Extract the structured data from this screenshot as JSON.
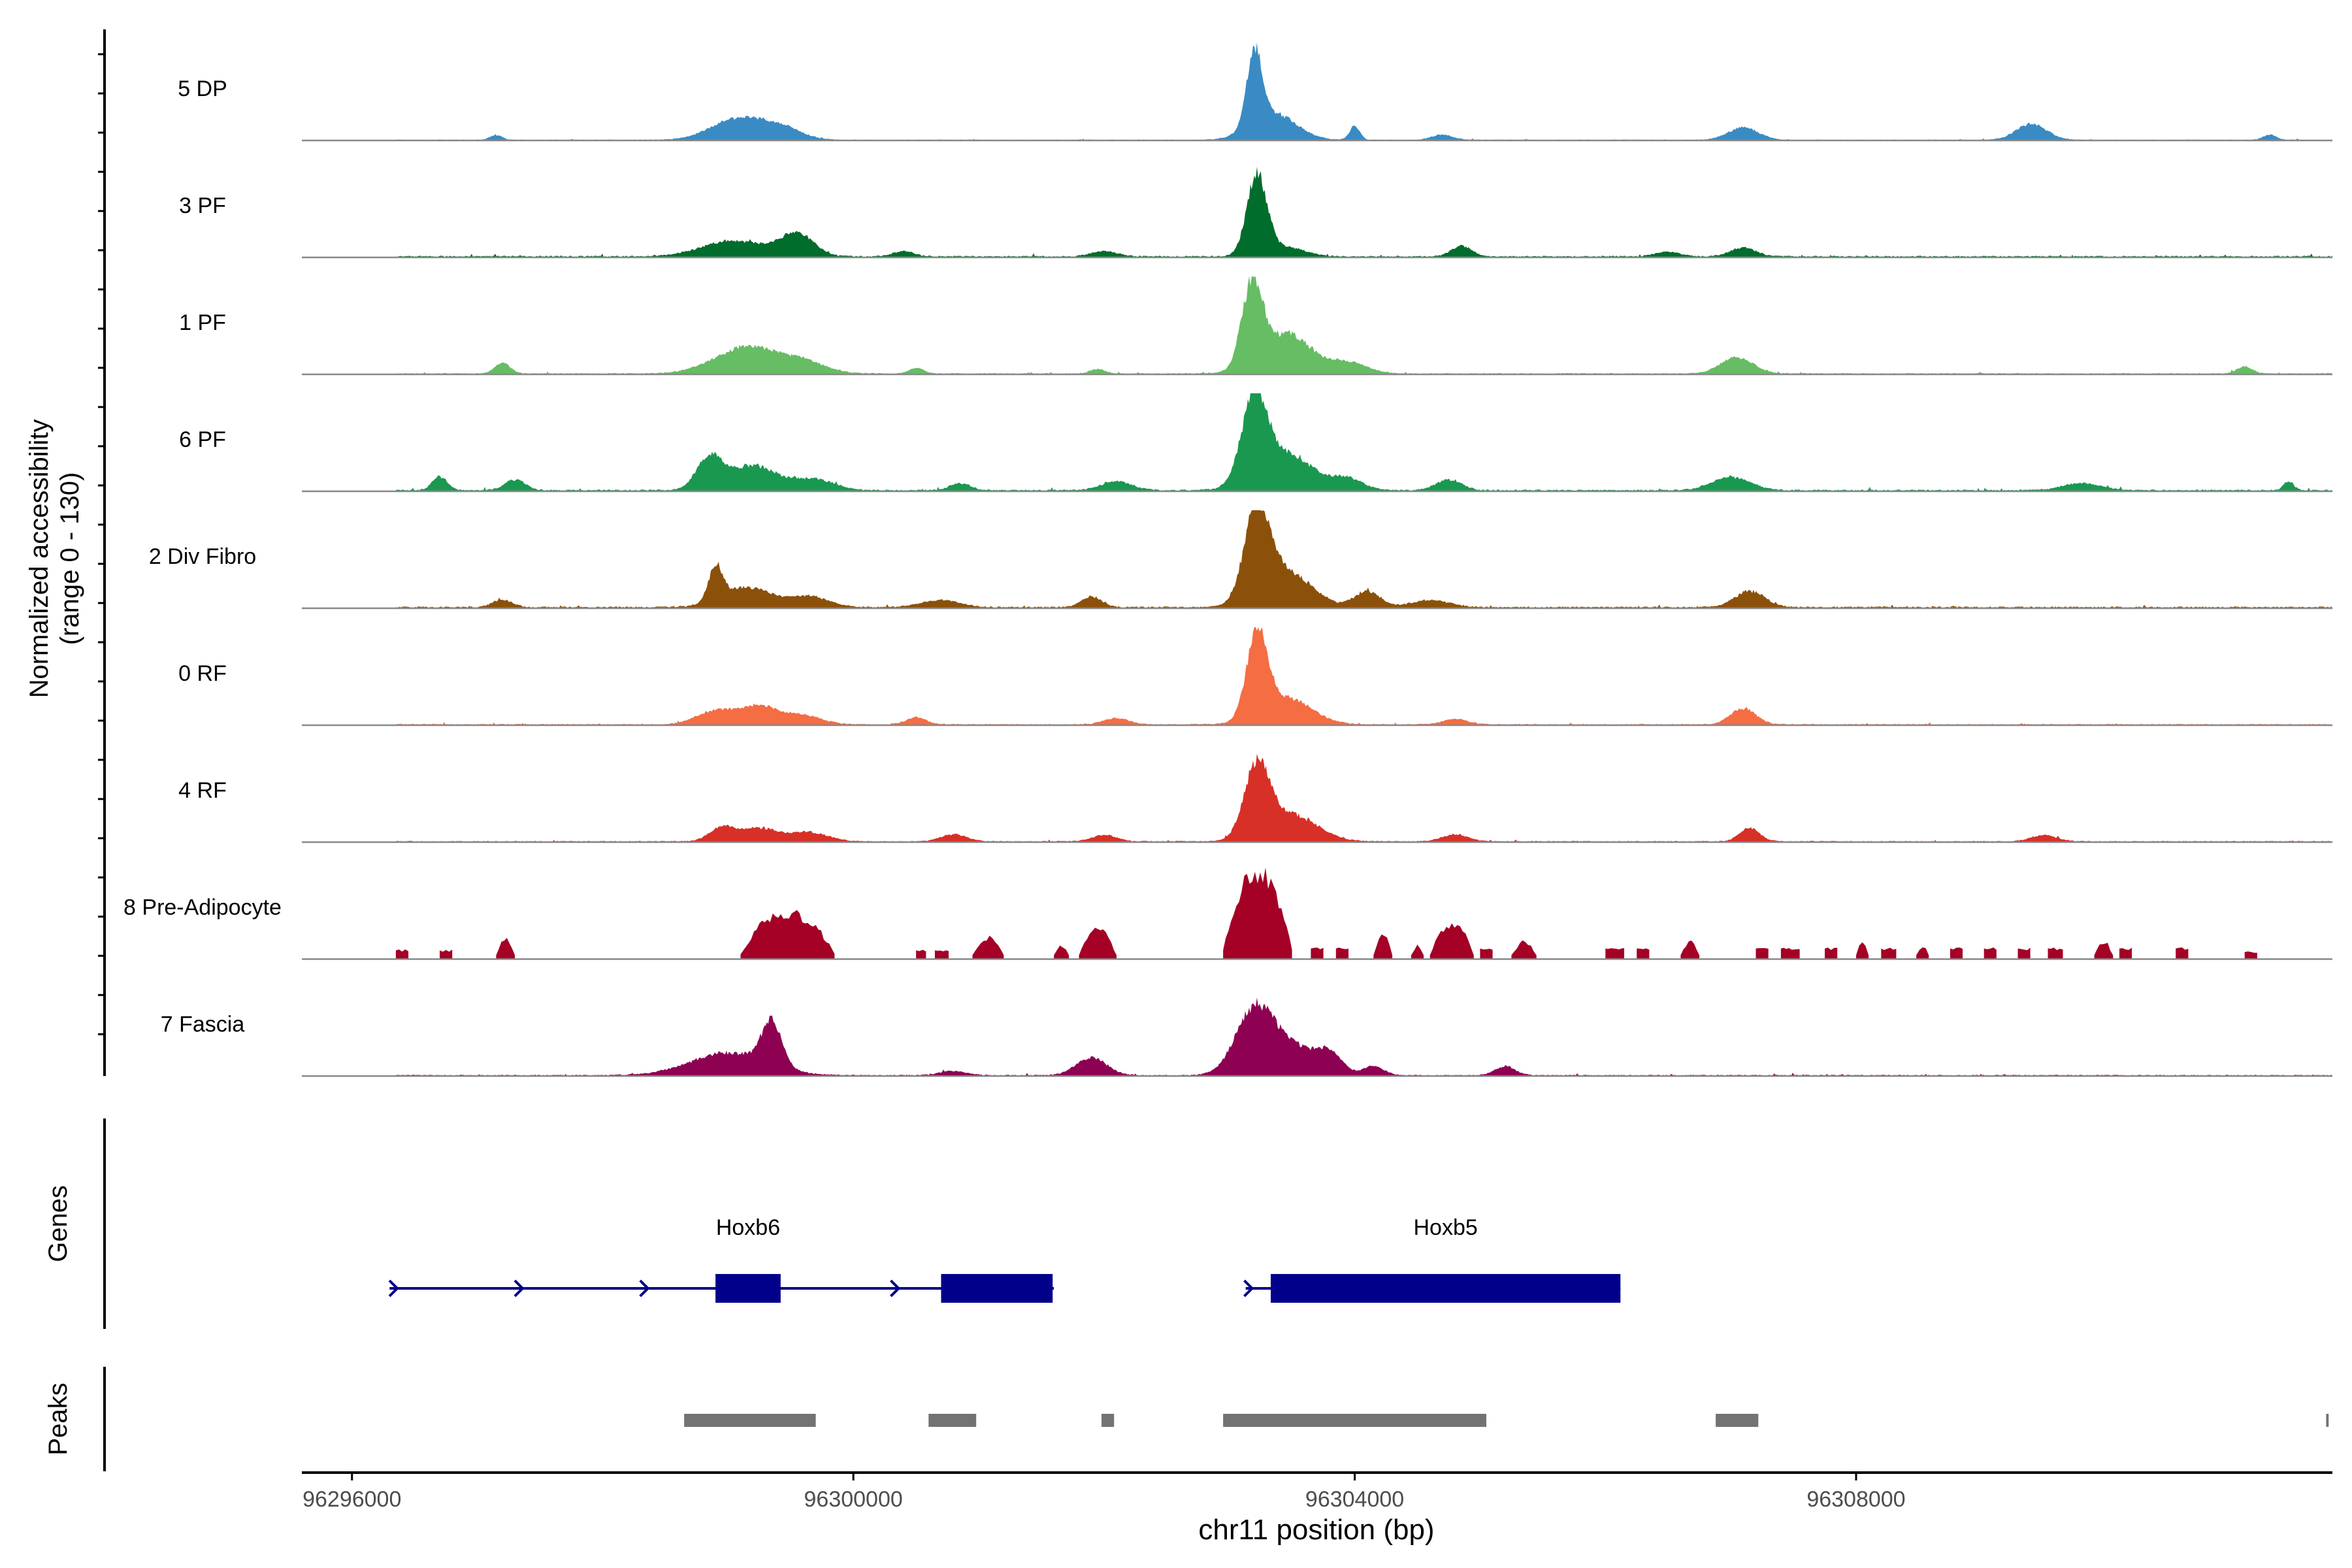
{
  "chart_data": {
    "type": "coverage",
    "y_axis_label_line1": "Normalized accessibility",
    "y_axis_label_line2": "(range 0 - 130)",
    "y_range": [
      0,
      130
    ],
    "x_axis_label": "chr11 position (bp)",
    "x_range": [
      96295600,
      96311800
    ],
    "x_ticks": [
      {
        "value": 96296000,
        "label": "96296000"
      },
      {
        "value": 96300000,
        "label": "96300000"
      },
      {
        "value": 96304000,
        "label": "96304000"
      },
      {
        "value": 96308000,
        "label": "96308000"
      }
    ],
    "data_range": [
      96296350,
      96311800
    ],
    "tracks": [
      {
        "name": "5 DP",
        "color": "#3a8bc4",
        "peak": 0.85,
        "cov": 0.4,
        "blobs": [
          [
            96297150,
            50,
            0.05
          ],
          [
            96299100,
            220,
            0.25
          ],
          [
            96299450,
            150,
            0.1
          ],
          [
            96303200,
            60,
            0.85
          ],
          [
            96303350,
            180,
            0.3
          ],
          [
            96304000,
            40,
            0.15
          ],
          [
            96304700,
            80,
            0.06
          ],
          [
            96307100,
            120,
            0.14
          ],
          [
            96309400,
            120,
            0.18
          ],
          [
            96311300,
            50,
            0.06
          ]
        ]
      },
      {
        "name": "3 PF",
        "color": "#006d2c",
        "peak": 0.9,
        "cov": 0.7,
        "blobs": [
          [
            96299050,
            250,
            0.18
          ],
          [
            96299550,
            130,
            0.25
          ],
          [
            96303220,
            80,
            0.9
          ],
          [
            96303450,
            150,
            0.1
          ],
          [
            96304850,
            80,
            0.12
          ],
          [
            96307100,
            100,
            0.1
          ],
          [
            96300400,
            80,
            0.06
          ],
          [
            96302000,
            100,
            0.06
          ],
          [
            96306500,
            100,
            0.05
          ]
        ]
      },
      {
        "name": "1 PF",
        "color": "#66bd63",
        "peak": 0.9,
        "cov": 0.55,
        "blobs": [
          [
            96297200,
            60,
            0.12
          ],
          [
            96299150,
            250,
            0.3
          ],
          [
            96299600,
            180,
            0.12
          ],
          [
            96303180,
            80,
            0.9
          ],
          [
            96303450,
            200,
            0.45
          ],
          [
            96303950,
            150,
            0.12
          ],
          [
            96307050,
            130,
            0.18
          ],
          [
            96300500,
            60,
            0.06
          ],
          [
            96301950,
            60,
            0.05
          ],
          [
            96311100,
            60,
            0.08
          ]
        ]
      },
      {
        "name": "6 PF",
        "color": "#1a9850",
        "peak": 0.92,
        "cov": 0.75,
        "blobs": [
          [
            96296700,
            60,
            0.15
          ],
          [
            96297300,
            80,
            0.12
          ],
          [
            96298850,
            100,
            0.35
          ],
          [
            96299200,
            200,
            0.28
          ],
          [
            96299700,
            150,
            0.12
          ],
          [
            96303200,
            100,
            0.92
          ],
          [
            96303450,
            220,
            0.4
          ],
          [
            96303950,
            120,
            0.12
          ],
          [
            96304750,
            100,
            0.12
          ],
          [
            96307000,
            150,
            0.15
          ],
          [
            96302100,
            120,
            0.1
          ],
          [
            96300850,
            80,
            0.08
          ],
          [
            96309800,
            150,
            0.08
          ],
          [
            96311450,
            40,
            0.1
          ]
        ]
      },
      {
        "name": "2 Div Fibro",
        "color": "#8b510a",
        "peak": 1.0,
        "cov": 0.75,
        "blobs": [
          [
            96298900,
            55,
            0.38
          ],
          [
            96299150,
            200,
            0.22
          ],
          [
            96299650,
            150,
            0.12
          ],
          [
            96303220,
            100,
            1.0
          ],
          [
            96303450,
            200,
            0.4
          ],
          [
            96304100,
            100,
            0.18
          ],
          [
            96304600,
            150,
            0.08
          ],
          [
            96307150,
            120,
            0.18
          ],
          [
            96301900,
            80,
            0.12
          ],
          [
            96300700,
            150,
            0.08
          ],
          [
            96297200,
            80,
            0.08
          ]
        ]
      },
      {
        "name": "0 RF",
        "color": "#f46d43",
        "peak": 0.95,
        "cov": 0.55,
        "blobs": [
          [
            96298900,
            150,
            0.15
          ],
          [
            96299250,
            150,
            0.2
          ],
          [
            96299600,
            150,
            0.1
          ],
          [
            96303220,
            80,
            0.95
          ],
          [
            96303450,
            200,
            0.3
          ],
          [
            96307100,
            100,
            0.18
          ],
          [
            96300500,
            80,
            0.08
          ],
          [
            96302100,
            100,
            0.07
          ],
          [
            96304800,
            100,
            0.06
          ]
        ]
      },
      {
        "name": "4 RF",
        "color": "#d73027",
        "peak": 0.82,
        "cov": 0.55,
        "blobs": [
          [
            96298950,
            100,
            0.15
          ],
          [
            96299250,
            150,
            0.15
          ],
          [
            96299650,
            150,
            0.1
          ],
          [
            96303220,
            100,
            0.82
          ],
          [
            96303500,
            200,
            0.3
          ],
          [
            96304800,
            100,
            0.08
          ],
          [
            96307150,
            80,
            0.15
          ],
          [
            96300800,
            100,
            0.08
          ],
          [
            96302000,
            100,
            0.07
          ],
          [
            96309500,
            100,
            0.07
          ]
        ]
      }
    ],
    "islands_track": {
      "name": "8 Pre-Adipocyte",
      "color": "#a50026",
      "islands": [
        [
          96296350,
          96296450,
          0.1
        ],
        [
          96296700,
          96296800,
          0.1
        ],
        [
          96297150,
          96297300,
          0.25
        ],
        [
          96299100,
          96299850,
          0.55
        ],
        [
          96300500,
          96300580,
          0.1
        ],
        [
          96300650,
          96300760,
          0.1
        ],
        [
          96300950,
          96301200,
          0.25
        ],
        [
          96301600,
          96301720,
          0.15
        ],
        [
          96301800,
          96302100,
          0.35
        ],
        [
          96302950,
          96303500,
          1.0
        ],
        [
          96303650,
          96303750,
          0.12
        ],
        [
          96303850,
          96303950,
          0.12
        ],
        [
          96304150,
          96304300,
          0.3
        ],
        [
          96304450,
          96304550,
          0.15
        ],
        [
          96304600,
          96304950,
          0.42
        ],
        [
          96305000,
          96305100,
          0.12
        ],
        [
          96305250,
          96305450,
          0.2
        ],
        [
          96306000,
          96306150,
          0.12
        ],
        [
          96306250,
          96306350,
          0.12
        ],
        [
          96306600,
          96306750,
          0.2
        ],
        [
          96307200,
          96307300,
          0.12
        ],
        [
          96307400,
          96307550,
          0.12
        ],
        [
          96307750,
          96307850,
          0.12
        ],
        [
          96308000,
          96308100,
          0.18
        ],
        [
          96308200,
          96308320,
          0.12
        ],
        [
          96308480,
          96308580,
          0.15
        ],
        [
          96308750,
          96308850,
          0.12
        ],
        [
          96309020,
          96309120,
          0.12
        ],
        [
          96309290,
          96309390,
          0.12
        ],
        [
          96309530,
          96309650,
          0.12
        ],
        [
          96309900,
          96310050,
          0.2
        ],
        [
          96310100,
          96310200,
          0.12
        ],
        [
          96310550,
          96310650,
          0.12
        ],
        [
          96311100,
          96311200,
          0.08
        ]
      ]
    },
    "last_track": {
      "name": "7 Fascia",
      "color": "#8e0152",
      "peak": 0.7,
      "cov": 0.55,
      "blobs": [
        [
          96299000,
          300,
          0.25
        ],
        [
          96299350,
          80,
          0.5
        ],
        [
          96301900,
          120,
          0.2
        ],
        [
          96303200,
          150,
          0.7
        ],
        [
          96303500,
          200,
          0.3
        ],
        [
          96303800,
          100,
          0.2
        ],
        [
          96304150,
          80,
          0.1
        ],
        [
          96305200,
          80,
          0.1
        ],
        [
          96300800,
          100,
          0.05
        ]
      ]
    },
    "genes_label": "Genes",
    "genes": [
      {
        "name": "Hoxb6",
        "strand": "+",
        "line": [
          96296300,
          96301600
        ],
        "exons": [
          [
            96298900,
            96299420
          ],
          [
            96300700,
            96301590
          ]
        ],
        "arrows": [
          96296330,
          96297330,
          96298330,
          96300330
        ]
      },
      {
        "name": "Hoxb5",
        "strand": "+",
        "line": [
          96303130,
          96306120
        ],
        "exons": [
          [
            96303330,
            96306120
          ]
        ],
        "arrows": [
          96303150
        ]
      }
    ],
    "gene_color": "#00008b",
    "peaks_label": "Peaks",
    "peaks": [
      [
        96298650,
        96299700
      ],
      [
        96300600,
        96300980
      ],
      [
        96301980,
        96302080
      ],
      [
        96302950,
        96305050
      ],
      [
        96306880,
        96307220
      ],
      [
        96311750,
        96311770
      ]
    ],
    "peak_color": "#737373"
  }
}
